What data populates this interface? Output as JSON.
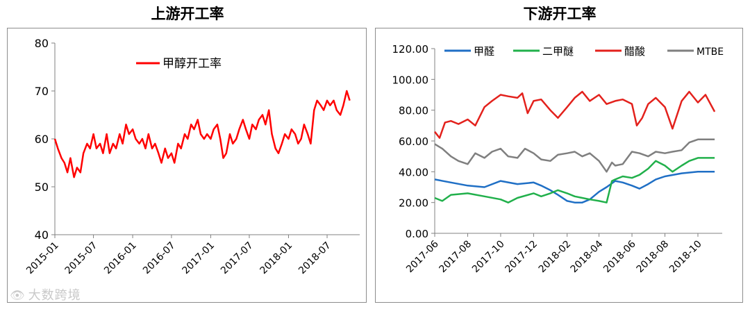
{
  "left_title": "上游开工率",
  "right_title": "下游开工率",
  "watermark": "大数跨境",
  "colors": {
    "methanol": "#ff0000",
    "formaldehyde": "#1f6fc5",
    "dme": "#21b04b",
    "acetic": "#e3211c",
    "mtbe": "#7f7f7f",
    "axis": "#808080",
    "frame": "#8c8c8c"
  },
  "chart_data": [
    {
      "type": "line",
      "title": "上游开工率",
      "ylim": [
        40,
        80
      ],
      "yticks": [
        40,
        50,
        60,
        70,
        80
      ],
      "xlim": [
        "2015-01-01",
        "2018-12-01"
      ],
      "xticks": [
        {
          "date": "2015-01-01",
          "label": "2015-01"
        },
        {
          "date": "2015-07-01",
          "label": "2015-07"
        },
        {
          "date": "2016-01-01",
          "label": "2016-01"
        },
        {
          "date": "2016-07-01",
          "label": "2016-07"
        },
        {
          "date": "2017-01-01",
          "label": "2017-01"
        },
        {
          "date": "2017-07-01",
          "label": "2017-07"
        },
        {
          "date": "2018-01-01",
          "label": "2018-01"
        },
        {
          "date": "2018-07-01",
          "label": "2018-07"
        }
      ],
      "legend_position": "top-center",
      "grid": false,
      "series": [
        {
          "name": "甲醇开工率",
          "color": "#ff0000",
          "points": [
            [
              "2015-01-01",
              60
            ],
            [
              "2015-01-15",
              58
            ],
            [
              "2015-02-01",
              56
            ],
            [
              "2015-02-15",
              55
            ],
            [
              "2015-03-01",
              53
            ],
            [
              "2015-03-15",
              56
            ],
            [
              "2015-04-01",
              52
            ],
            [
              "2015-04-15",
              54
            ],
            [
              "2015-05-01",
              53
            ],
            [
              "2015-05-15",
              57
            ],
            [
              "2015-06-01",
              59
            ],
            [
              "2015-06-15",
              58
            ],
            [
              "2015-07-01",
              61
            ],
            [
              "2015-07-15",
              58
            ],
            [
              "2015-08-01",
              59
            ],
            [
              "2015-08-15",
              57
            ],
            [
              "2015-09-01",
              61
            ],
            [
              "2015-09-15",
              57
            ],
            [
              "2015-10-01",
              59
            ],
            [
              "2015-10-15",
              58
            ],
            [
              "2015-11-01",
              61
            ],
            [
              "2015-11-15",
              59
            ],
            [
              "2015-12-01",
              63
            ],
            [
              "2015-12-15",
              61
            ],
            [
              "2016-01-01",
              62
            ],
            [
              "2016-01-15",
              60
            ],
            [
              "2016-02-01",
              59
            ],
            [
              "2016-02-15",
              60
            ],
            [
              "2016-03-01",
              58
            ],
            [
              "2016-03-15",
              61
            ],
            [
              "2016-04-01",
              58
            ],
            [
              "2016-04-15",
              59
            ],
            [
              "2016-05-01",
              57
            ],
            [
              "2016-05-15",
              55
            ],
            [
              "2016-06-01",
              58
            ],
            [
              "2016-06-15",
              56
            ],
            [
              "2016-07-01",
              57
            ],
            [
              "2016-07-15",
              55
            ],
            [
              "2016-08-01",
              59
            ],
            [
              "2016-08-15",
              58
            ],
            [
              "2016-09-01",
              61
            ],
            [
              "2016-09-15",
              60
            ],
            [
              "2016-10-01",
              63
            ],
            [
              "2016-10-15",
              62
            ],
            [
              "2016-11-01",
              64
            ],
            [
              "2016-11-15",
              61
            ],
            [
              "2016-12-01",
              60
            ],
            [
              "2016-12-15",
              61
            ],
            [
              "2017-01-01",
              60
            ],
            [
              "2017-01-15",
              62
            ],
            [
              "2017-02-01",
              63
            ],
            [
              "2017-02-15",
              60
            ],
            [
              "2017-03-01",
              56
            ],
            [
              "2017-03-15",
              57
            ],
            [
              "2017-04-01",
              61
            ],
            [
              "2017-04-15",
              59
            ],
            [
              "2017-05-01",
              60
            ],
            [
              "2017-05-15",
              62
            ],
            [
              "2017-06-01",
              64
            ],
            [
              "2017-06-15",
              62
            ],
            [
              "2017-07-01",
              60
            ],
            [
              "2017-07-15",
              63
            ],
            [
              "2017-08-01",
              62
            ],
            [
              "2017-08-15",
              64
            ],
            [
              "2017-09-01",
              65
            ],
            [
              "2017-09-15",
              63
            ],
            [
              "2017-10-01",
              66
            ],
            [
              "2017-10-15",
              61
            ],
            [
              "2017-11-01",
              58
            ],
            [
              "2017-11-15",
              57
            ],
            [
              "2017-12-01",
              59
            ],
            [
              "2017-12-15",
              61
            ],
            [
              "2018-01-01",
              60
            ],
            [
              "2018-01-15",
              62
            ],
            [
              "2018-02-01",
              61
            ],
            [
              "2018-02-15",
              59
            ],
            [
              "2018-03-01",
              60
            ],
            [
              "2018-03-15",
              63
            ],
            [
              "2018-04-01",
              61
            ],
            [
              "2018-04-15",
              59
            ],
            [
              "2018-05-01",
              66
            ],
            [
              "2018-05-15",
              68
            ],
            [
              "2018-06-01",
              67
            ],
            [
              "2018-06-15",
              66
            ],
            [
              "2018-07-01",
              68
            ],
            [
              "2018-07-15",
              67
            ],
            [
              "2018-08-01",
              68
            ],
            [
              "2018-08-15",
              66
            ],
            [
              "2018-09-01",
              65
            ],
            [
              "2018-09-15",
              67
            ],
            [
              "2018-10-01",
              70
            ],
            [
              "2018-10-15",
              68
            ]
          ]
        }
      ]
    },
    {
      "type": "line",
      "title": "下游开工率",
      "ylim": [
        0,
        120
      ],
      "yticks": [
        0,
        20,
        40,
        60,
        80,
        100,
        120
      ],
      "ytick_labels": [
        "0.00",
        "20.00",
        "40.00",
        "60.00",
        "80.00",
        "100.00",
        "120.00"
      ],
      "xlim": [
        "2017-06-01",
        "2018-11-15"
      ],
      "xticks": [
        {
          "date": "2017-06-01",
          "label": "2017-06"
        },
        {
          "date": "2017-08-01",
          "label": "2017-08"
        },
        {
          "date": "2017-10-01",
          "label": "2017-10"
        },
        {
          "date": "2017-12-01",
          "label": "2017-12"
        },
        {
          "date": "2018-02-01",
          "label": "2018-02"
        },
        {
          "date": "2018-04-01",
          "label": "2018-04"
        },
        {
          "date": "2018-06-01",
          "label": "2018-06"
        },
        {
          "date": "2018-08-01",
          "label": "2018-08"
        },
        {
          "date": "2018-10-01",
          "label": "2018-10"
        }
      ],
      "legend_position": "top",
      "grid": false,
      "series": [
        {
          "name": "甲醛",
          "color": "#1f6fc5",
          "points": [
            [
              "2017-06-01",
              35
            ],
            [
              "2017-07-01",
              33
            ],
            [
              "2017-08-01",
              31
            ],
            [
              "2017-09-01",
              30
            ],
            [
              "2017-10-01",
              34
            ],
            [
              "2017-11-01",
              32
            ],
            [
              "2017-12-01",
              33
            ],
            [
              "2017-12-15",
              31
            ],
            [
              "2018-01-01",
              28
            ],
            [
              "2018-01-15",
              25
            ],
            [
              "2018-02-01",
              21
            ],
            [
              "2018-02-15",
              20
            ],
            [
              "2018-03-01",
              20
            ],
            [
              "2018-03-15",
              22
            ],
            [
              "2018-04-01",
              27
            ],
            [
              "2018-04-15",
              30
            ],
            [
              "2018-05-01",
              34
            ],
            [
              "2018-05-15",
              33
            ],
            [
              "2018-06-01",
              31
            ],
            [
              "2018-06-15",
              29
            ],
            [
              "2018-07-01",
              32
            ],
            [
              "2018-07-15",
              35
            ],
            [
              "2018-08-01",
              37
            ],
            [
              "2018-09-01",
              39
            ],
            [
              "2018-10-01",
              40
            ],
            [
              "2018-11-01",
              40
            ]
          ]
        },
        {
          "name": "二甲醚",
          "color": "#21b04b",
          "points": [
            [
              "2017-06-01",
              23
            ],
            [
              "2017-06-15",
              21
            ],
            [
              "2017-07-01",
              25
            ],
            [
              "2017-08-01",
              26
            ],
            [
              "2017-09-01",
              24
            ],
            [
              "2017-10-01",
              22
            ],
            [
              "2017-10-15",
              20
            ],
            [
              "2017-11-01",
              23
            ],
            [
              "2017-12-01",
              26
            ],
            [
              "2017-12-15",
              24
            ],
            [
              "2018-01-01",
              26
            ],
            [
              "2018-01-15",
              28
            ],
            [
              "2018-02-01",
              26
            ],
            [
              "2018-02-15",
              24
            ],
            [
              "2018-03-01",
              23
            ],
            [
              "2018-03-15",
              22
            ],
            [
              "2018-04-01",
              21
            ],
            [
              "2018-04-15",
              20
            ],
            [
              "2018-04-25",
              34
            ],
            [
              "2018-05-01",
              35
            ],
            [
              "2018-05-15",
              37
            ],
            [
              "2018-06-01",
              36
            ],
            [
              "2018-06-15",
              38
            ],
            [
              "2018-07-01",
              42
            ],
            [
              "2018-07-15",
              47
            ],
            [
              "2018-08-01",
              44
            ],
            [
              "2018-08-15",
              40
            ],
            [
              "2018-09-01",
              44
            ],
            [
              "2018-09-15",
              47
            ],
            [
              "2018-10-01",
              49
            ],
            [
              "2018-11-01",
              49
            ]
          ]
        },
        {
          "name": "醋酸",
          "color": "#e3211c",
          "points": [
            [
              "2017-06-01",
              66
            ],
            [
              "2017-06-10",
              62
            ],
            [
              "2017-06-20",
              72
            ],
            [
              "2017-07-01",
              73
            ],
            [
              "2017-07-15",
              71
            ],
            [
              "2017-08-01",
              74
            ],
            [
              "2017-08-15",
              70
            ],
            [
              "2017-09-01",
              82
            ],
            [
              "2017-09-15",
              86
            ],
            [
              "2017-10-01",
              90
            ],
            [
              "2017-10-15",
              89
            ],
            [
              "2017-11-01",
              88
            ],
            [
              "2017-11-10",
              91
            ],
            [
              "2017-11-20",
              78
            ],
            [
              "2017-12-01",
              86
            ],
            [
              "2017-12-15",
              87
            ],
            [
              "2018-01-01",
              80
            ],
            [
              "2018-01-15",
              75
            ],
            [
              "2018-02-01",
              82
            ],
            [
              "2018-02-15",
              88
            ],
            [
              "2018-03-01",
              92
            ],
            [
              "2018-03-15",
              86
            ],
            [
              "2018-04-01",
              90
            ],
            [
              "2018-04-15",
              84
            ],
            [
              "2018-05-01",
              86
            ],
            [
              "2018-05-15",
              87
            ],
            [
              "2018-06-01",
              84
            ],
            [
              "2018-06-10",
              70
            ],
            [
              "2018-06-20",
              75
            ],
            [
              "2018-07-01",
              84
            ],
            [
              "2018-07-15",
              88
            ],
            [
              "2018-08-01",
              82
            ],
            [
              "2018-08-15",
              68
            ],
            [
              "2018-09-01",
              86
            ],
            [
              "2018-09-15",
              92
            ],
            [
              "2018-10-01",
              85
            ],
            [
              "2018-10-15",
              90
            ],
            [
              "2018-11-01",
              79
            ]
          ]
        },
        {
          "name": "MTBE",
          "color": "#7f7f7f",
          "points": [
            [
              "2017-06-01",
              58
            ],
            [
              "2017-06-15",
              55
            ],
            [
              "2017-07-01",
              50
            ],
            [
              "2017-07-15",
              47
            ],
            [
              "2017-08-01",
              45
            ],
            [
              "2017-08-15",
              52
            ],
            [
              "2017-09-01",
              49
            ],
            [
              "2017-09-15",
              53
            ],
            [
              "2017-10-01",
              55
            ],
            [
              "2017-10-15",
              50
            ],
            [
              "2017-11-01",
              49
            ],
            [
              "2017-11-15",
              55
            ],
            [
              "2017-12-01",
              52
            ],
            [
              "2017-12-15",
              48
            ],
            [
              "2018-01-01",
              47
            ],
            [
              "2018-01-15",
              51
            ],
            [
              "2018-02-01",
              52
            ],
            [
              "2018-02-15",
              53
            ],
            [
              "2018-03-01",
              50
            ],
            [
              "2018-03-15",
              52
            ],
            [
              "2018-04-01",
              47
            ],
            [
              "2018-04-15",
              40
            ],
            [
              "2018-04-25",
              46
            ],
            [
              "2018-05-01",
              44
            ],
            [
              "2018-05-15",
              45
            ],
            [
              "2018-06-01",
              53
            ],
            [
              "2018-06-15",
              52
            ],
            [
              "2018-07-01",
              50
            ],
            [
              "2018-07-15",
              53
            ],
            [
              "2018-08-01",
              52
            ],
            [
              "2018-08-15",
              53
            ],
            [
              "2018-09-01",
              54
            ],
            [
              "2018-09-15",
              59
            ],
            [
              "2018-10-01",
              61
            ],
            [
              "2018-11-01",
              61
            ]
          ]
        }
      ]
    }
  ]
}
